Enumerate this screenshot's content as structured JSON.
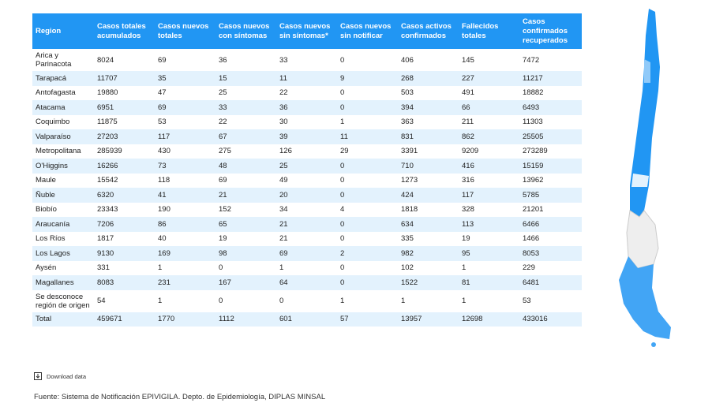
{
  "table": {
    "header": [
      "Region",
      "Casos totales acumulados",
      "Casos nuevos totales",
      "Casos nuevos con síntomas",
      "Casos nuevos sin síntomas*",
      "Casos nuevos sin notificar",
      "Casos activos confirmados",
      "Fallecidos totales",
      "Casos confirmados recuperados"
    ],
    "rows": [
      [
        "Arica y Parinacota",
        8024,
        69,
        36,
        33,
        0,
        406,
        145,
        7472
      ],
      [
        "Tarapacá",
        11707,
        35,
        15,
        11,
        9,
        268,
        227,
        11217
      ],
      [
        "Antofagasta",
        19880,
        47,
        25,
        22,
        0,
        503,
        491,
        18882
      ],
      [
        "Atacama",
        6951,
        69,
        33,
        36,
        0,
        394,
        66,
        6493
      ],
      [
        "Coquimbo",
        11875,
        53,
        22,
        30,
        1,
        363,
        211,
        11303
      ],
      [
        "Valparaíso",
        27203,
        117,
        67,
        39,
        11,
        831,
        862,
        25505
      ],
      [
        "Metropolitana",
        285939,
        430,
        275,
        126,
        29,
        3391,
        9209,
        273289
      ],
      [
        "O'Higgins",
        16266,
        73,
        48,
        25,
        0,
        710,
        416,
        15159
      ],
      [
        "Maule",
        15542,
        118,
        69,
        49,
        0,
        1273,
        316,
        13962
      ],
      [
        "Ñuble",
        6320,
        41,
        21,
        20,
        0,
        424,
        117,
        5785
      ],
      [
        "Biobío",
        23343,
        190,
        152,
        34,
        4,
        1818,
        328,
        21201
      ],
      [
        "Araucanía",
        7206,
        86,
        65,
        21,
        0,
        634,
        113,
        6466
      ],
      [
        "Los Ríos",
        1817,
        40,
        19,
        21,
        0,
        335,
        19,
        1466
      ],
      [
        "Los Lagos",
        9130,
        169,
        98,
        69,
        2,
        982,
        95,
        8053
      ],
      [
        "Aysén",
        331,
        1,
        0,
        1,
        0,
        102,
        1,
        229
      ],
      [
        "Magallanes",
        8083,
        231,
        167,
        64,
        0,
        1522,
        81,
        6481
      ],
      [
        "Se desconoce región de origen",
        54,
        1,
        0,
        0,
        1,
        1,
        1,
        53
      ],
      [
        "Total",
        459671,
        1770,
        1112,
        601,
        57,
        13957,
        12698,
        433016
      ]
    ]
  },
  "download": "Download data",
  "source": "Fuente: Sistema de Notificación EPIVIGILA. Depto. de Epidemiología, DIPLAS MINSAL"
}
